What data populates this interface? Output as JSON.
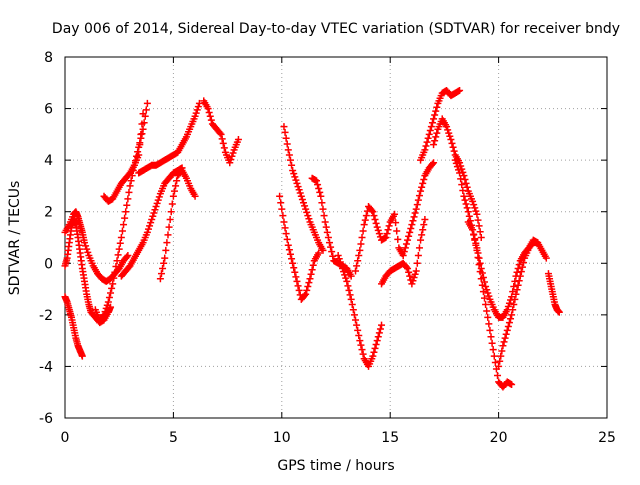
{
  "chart_data": {
    "type": "scatter",
    "title": "Day 006 of 2014, Sidereal Day-to-day VTEC variation (SDTVAR) for receiver bndy",
    "xlabel": "GPS time / hours",
    "ylabel": "SDTVAR / TECUs",
    "xlim": [
      0,
      25
    ],
    "ylim": [
      -6,
      8
    ],
    "x_ticks": [
      "0",
      "5",
      "10",
      "15",
      "20",
      "25"
    ],
    "y_ticks": [
      "-6",
      "-4",
      "-2",
      "0",
      "2",
      "4",
      "6",
      "8"
    ],
    "grid": true,
    "marker": "+",
    "color": "#ff0000",
    "series": [
      {
        "x": [
          0.0,
          0.2,
          0.4,
          0.5,
          0.6,
          0.7,
          0.8,
          0.9,
          1.1,
          1.3,
          1.5,
          1.7,
          1.9,
          2.1,
          2.3,
          2.5,
          2.7,
          2.9
        ],
        "y": [
          1.2,
          1.5,
          1.9,
          2.0,
          1.8,
          1.5,
          1.2,
          0.8,
          0.3,
          -0.1,
          -0.4,
          -0.6,
          -0.7,
          -0.6,
          -0.4,
          -0.2,
          0.1,
          0.3
        ]
      },
      {
        "x": [
          0.0,
          0.1,
          0.2,
          0.3,
          0.4,
          0.5,
          0.6,
          0.7,
          0.8,
          0.9,
          1.0,
          1.1,
          1.2,
          1.4,
          1.6,
          1.8,
          2.0,
          2.1
        ],
        "y": [
          -0.1,
          0.2,
          0.8,
          1.4,
          1.7,
          1.5,
          1.0,
          0.4,
          -0.2,
          -0.7,
          -1.2,
          -1.6,
          -1.9,
          -2.1,
          -2.3,
          -2.2,
          -1.9,
          -1.7
        ]
      },
      {
        "x": [
          0.0,
          0.1,
          0.2,
          0.3,
          0.4,
          0.5,
          0.6,
          0.7,
          0.8
        ],
        "y": [
          -1.3,
          -1.5,
          -1.8,
          -2.1,
          -2.5,
          -2.9,
          -3.2,
          -3.4,
          -3.6
        ]
      },
      {
        "x": [
          1.4,
          1.6,
          1.8,
          2.0,
          2.2,
          2.4,
          2.6,
          2.8,
          3.0,
          3.2,
          3.4,
          3.6,
          3.8
        ],
        "y": [
          -1.8,
          -2.2,
          -2.0,
          -1.5,
          -0.8,
          0.1,
          1.0,
          2.0,
          3.0,
          3.8,
          4.5,
          5.2,
          6.2
        ]
      },
      {
        "x": [
          1.8,
          2.0,
          2.2,
          2.4,
          2.6,
          2.8,
          3.0,
          3.2,
          3.4,
          3.6
        ],
        "y": [
          2.6,
          2.4,
          2.5,
          2.8,
          3.1,
          3.3,
          3.5,
          3.8,
          4.2,
          5.8
        ]
      },
      {
        "x": [
          2.6,
          2.8,
          3.0,
          3.2,
          3.4,
          3.6,
          3.8,
          4.0,
          4.2,
          4.4,
          4.6,
          4.8,
          5.0,
          5.2,
          5.4
        ],
        "y": [
          -0.5,
          -0.3,
          -0.1,
          0.2,
          0.5,
          0.8,
          1.2,
          1.7,
          2.2,
          2.7,
          3.1,
          3.3,
          3.5,
          3.6,
          3.7
        ]
      },
      {
        "x": [
          3.4,
          3.6,
          3.8,
          4.0,
          4.2,
          4.4,
          4.6,
          4.8,
          5.0,
          5.2,
          5.4,
          5.6,
          5.8,
          6.0,
          6.2
        ],
        "y": [
          3.5,
          3.6,
          3.7,
          3.8,
          3.8,
          3.9,
          4.0,
          4.1,
          4.2,
          4.3,
          4.6,
          4.9,
          5.3,
          5.7,
          6.2
        ]
      },
      {
        "x": [
          4.4,
          4.6,
          4.8,
          5.0,
          5.2,
          5.4,
          5.6,
          5.8,
          6.0
        ],
        "y": [
          -0.6,
          0.2,
          1.4,
          2.6,
          3.4,
          3.6,
          3.3,
          2.9,
          2.6
        ]
      },
      {
        "x": [
          6.4,
          6.6,
          6.8,
          7.0,
          7.2,
          7.4,
          7.6,
          7.8,
          8.0
        ],
        "y": [
          6.3,
          6.0,
          5.4,
          5.2,
          5.0,
          4.3,
          3.9,
          4.4,
          4.8
        ]
      },
      {
        "x": [
          9.9,
          10.1,
          10.3,
          10.5,
          10.7,
          10.9,
          11.1,
          11.3,
          11.5,
          11.7
        ],
        "y": [
          2.6,
          1.6,
          0.7,
          0.0,
          -0.7,
          -1.4,
          -1.2,
          -0.6,
          0.1,
          0.4
        ]
      },
      {
        "x": [
          10.1,
          10.3,
          10.5,
          10.7,
          10.9,
          11.1,
          11.3,
          11.5,
          11.7,
          11.9
        ],
        "y": [
          5.3,
          4.4,
          3.6,
          3.1,
          2.6,
          2.1,
          1.6,
          1.2,
          0.8,
          0.5
        ]
      },
      {
        "x": [
          11.4,
          11.6,
          11.8,
          12.0,
          12.2,
          12.4,
          12.6,
          12.8,
          13.0,
          13.2
        ],
        "y": [
          3.3,
          3.2,
          2.6,
          1.6,
          0.8,
          0.1,
          0.0,
          -0.1,
          -0.2,
          -0.5
        ]
      },
      {
        "x": [
          12.6,
          12.8,
          13.0,
          13.2,
          13.4,
          13.6,
          13.8,
          14.0,
          14.2,
          14.4,
          14.6
        ],
        "y": [
          0.3,
          -0.2,
          -0.7,
          -1.4,
          -2.2,
          -3.0,
          -3.7,
          -4.0,
          -3.6,
          -3.0,
          -2.4
        ]
      },
      {
        "x": [
          13.4,
          13.6,
          13.8,
          14.0,
          14.2,
          14.4,
          14.6,
          14.8,
          15.0,
          15.2,
          15.4,
          15.6,
          15.8,
          16.0,
          16.2,
          16.4,
          16.6,
          16.8,
          17.0
        ],
        "y": [
          -0.3,
          0.5,
          1.5,
          2.2,
          2.0,
          1.4,
          0.9,
          1.0,
          1.6,
          1.9,
          0.6,
          0.3,
          0.9,
          1.5,
          2.1,
          2.8,
          3.4,
          3.7,
          3.9
        ]
      },
      {
        "x": [
          14.6,
          14.8,
          15.0,
          15.2,
          15.4,
          15.6,
          15.8,
          16.0,
          16.2,
          16.4,
          16.6
        ],
        "y": [
          -0.8,
          -0.5,
          -0.3,
          -0.2,
          -0.1,
          0.0,
          -0.2,
          -0.8,
          -0.3,
          0.9,
          1.7
        ]
      },
      {
        "x": [
          16.4,
          16.6,
          16.8,
          17.0,
          17.2,
          17.4,
          17.6,
          17.8,
          18.0,
          18.2
        ],
        "y": [
          4.0,
          4.4,
          5.0,
          5.6,
          6.2,
          6.6,
          6.7,
          6.5,
          6.6,
          6.7
        ]
      },
      {
        "x": [
          17.0,
          17.2,
          17.4,
          17.6,
          17.8,
          18.0,
          18.2,
          18.4,
          18.6,
          18.8,
          19.0,
          19.2
        ],
        "y": [
          4.6,
          5.2,
          5.6,
          5.3,
          4.8,
          4.2,
          3.9,
          3.4,
          2.8,
          2.4,
          1.9,
          1.0
        ]
      },
      {
        "x": [
          18.0,
          18.2,
          18.4,
          18.6,
          18.8,
          19.0,
          19.2,
          19.4,
          19.6,
          19.8,
          20.0,
          20.2,
          20.4,
          20.6
        ],
        "y": [
          4.0,
          3.5,
          2.6,
          2.0,
          1.3,
          0.5,
          -0.6,
          -1.6,
          -2.6,
          -3.6,
          -4.6,
          -4.8,
          -4.6,
          -4.7
        ]
      },
      {
        "x": [
          18.6,
          18.8,
          19.0,
          19.2,
          19.4,
          19.6,
          19.8,
          20.0,
          20.2,
          20.4,
          20.6,
          20.8,
          21.0,
          21.2,
          21.4,
          21.6,
          21.8,
          22.0,
          22.2
        ],
        "y": [
          1.6,
          1.3,
          0.6,
          -0.2,
          -0.9,
          -1.4,
          -1.8,
          -2.1,
          -2.1,
          -1.8,
          -1.3,
          -0.5,
          0.1,
          0.4,
          0.6,
          0.8,
          0.8,
          0.5,
          0.2
        ]
      },
      {
        "x": [
          20.0,
          20.2,
          20.4,
          20.6,
          20.8,
          21.0,
          21.2,
          21.4,
          21.6,
          21.8
        ],
        "y": [
          -4.0,
          -3.2,
          -2.6,
          -2.0,
          -1.2,
          -0.5,
          0.2,
          0.6,
          0.9,
          0.8
        ]
      },
      {
        "x": [
          22.3,
          22.4,
          22.5,
          22.6,
          22.7,
          22.8
        ],
        "y": [
          -0.4,
          -0.8,
          -1.2,
          -1.6,
          -1.8,
          -1.9
        ]
      }
    ]
  }
}
